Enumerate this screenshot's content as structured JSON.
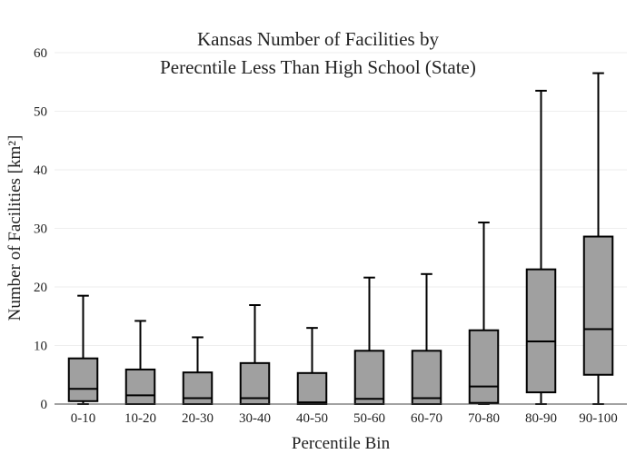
{
  "chart_data": {
    "type": "box",
    "title_line1": "Kansas Number of Facilities by",
    "title_line2": "Perecntile Less Than High School (State)",
    "xlabel": "Percentile Bin",
    "ylabel": "Number of Facilities  [km²]",
    "ylim": [
      0,
      60
    ],
    "yticks": [
      0,
      10,
      20,
      30,
      40,
      50,
      60
    ],
    "grid": true,
    "box_color": "#a0a0a0",
    "categories": [
      "0-10",
      "10-20",
      "20-30",
      "30-40",
      "40-50",
      "50-60",
      "60-70",
      "70-80",
      "80-90",
      "90-100"
    ],
    "boxes": [
      {
        "min": 0,
        "q1": 0.5,
        "median": 2.6,
        "q3": 7.8,
        "max": 18.5
      },
      {
        "min": 0,
        "q1": 0,
        "median": 1.5,
        "q3": 5.9,
        "max": 14.2
      },
      {
        "min": 0,
        "q1": 0,
        "median": 1.0,
        "q3": 5.4,
        "max": 11.4
      },
      {
        "min": 0,
        "q1": 0,
        "median": 1.0,
        "q3": 7.0,
        "max": 16.9
      },
      {
        "min": 0,
        "q1": 0,
        "median": 0.3,
        "q3": 5.3,
        "max": 13.0
      },
      {
        "min": 0,
        "q1": 0,
        "median": 0.9,
        "q3": 9.1,
        "max": 21.6
      },
      {
        "min": 0,
        "q1": 0,
        "median": 1.0,
        "q3": 9.1,
        "max": 22.2
      },
      {
        "min": 0,
        "q1": 0.2,
        "median": 3.0,
        "q3": 12.6,
        "max": 31.0
      },
      {
        "min": 0,
        "q1": 2.0,
        "median": 10.7,
        "q3": 23.0,
        "max": 53.5
      },
      {
        "min": 0,
        "q1": 5.0,
        "median": 12.8,
        "q3": 28.6,
        "max": 56.5
      }
    ]
  }
}
